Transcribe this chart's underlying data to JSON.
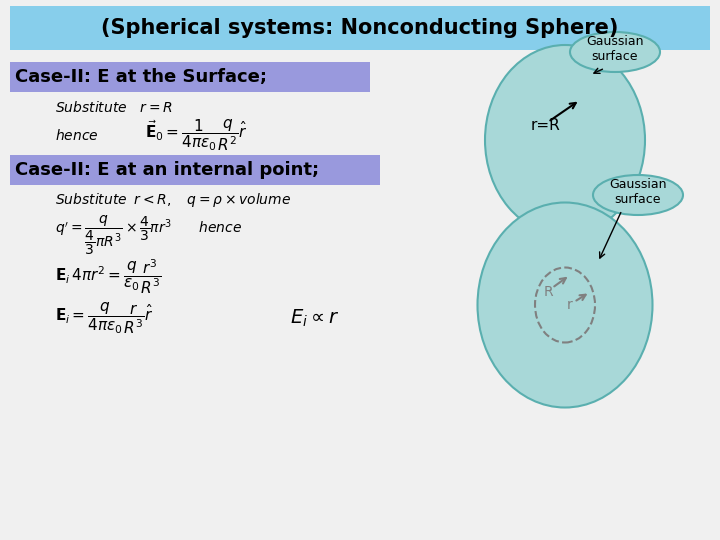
{
  "title": "(Spherical systems: Nonconducting Sphere)",
  "title_bg": "#87CEEB",
  "case1_label": "Case-II: E at the Surface;",
  "case1_bg": "#9999DD",
  "case2_label": "Case-II: E at an internal point;",
  "case2_bg": "#9999DD",
  "bg_color": "#F0F0F0",
  "eq1_sub": "Substitute\\quad r = R",
  "eq1_hence": "hence\\quad\\quad \\vec{\\mathbf{E}}_0 = \\dfrac{1}{4\\pi\\varepsilon_0}\\dfrac{q}{R^2}\\hat{r}",
  "eq2_sub": "Substitute\\;\\; r < R, \\quad q = \\rho \\times volume",
  "eq2_q": "q^{\\prime} = \\dfrac{q}{\\dfrac{4}{3}\\pi R^3} \\times \\dfrac{4}{3}\\pi r^3 \\quad\\quad hence",
  "eq2_E1": "\\mathbf{E}_i\\, 4\\pi r^2 = \\dfrac{q}{\\varepsilon_0} \\dfrac{r^3}{R^3}",
  "eq2_E2": "\\mathbf{E}_i = \\dfrac{q}{4\\pi\\varepsilon_0} \\dfrac{r}{R^3} \\hat{r}",
  "eq2_prop": "E_i \\propto r",
  "gaussian_label": "Gaussian\nsurface",
  "rR_label": "r=R",
  "R_label": "R",
  "r_label": "r",
  "sphere1_color": "#A8D8D8",
  "sphere2_color": "#A8D8D8",
  "bubble_color": "#A8D8D8"
}
